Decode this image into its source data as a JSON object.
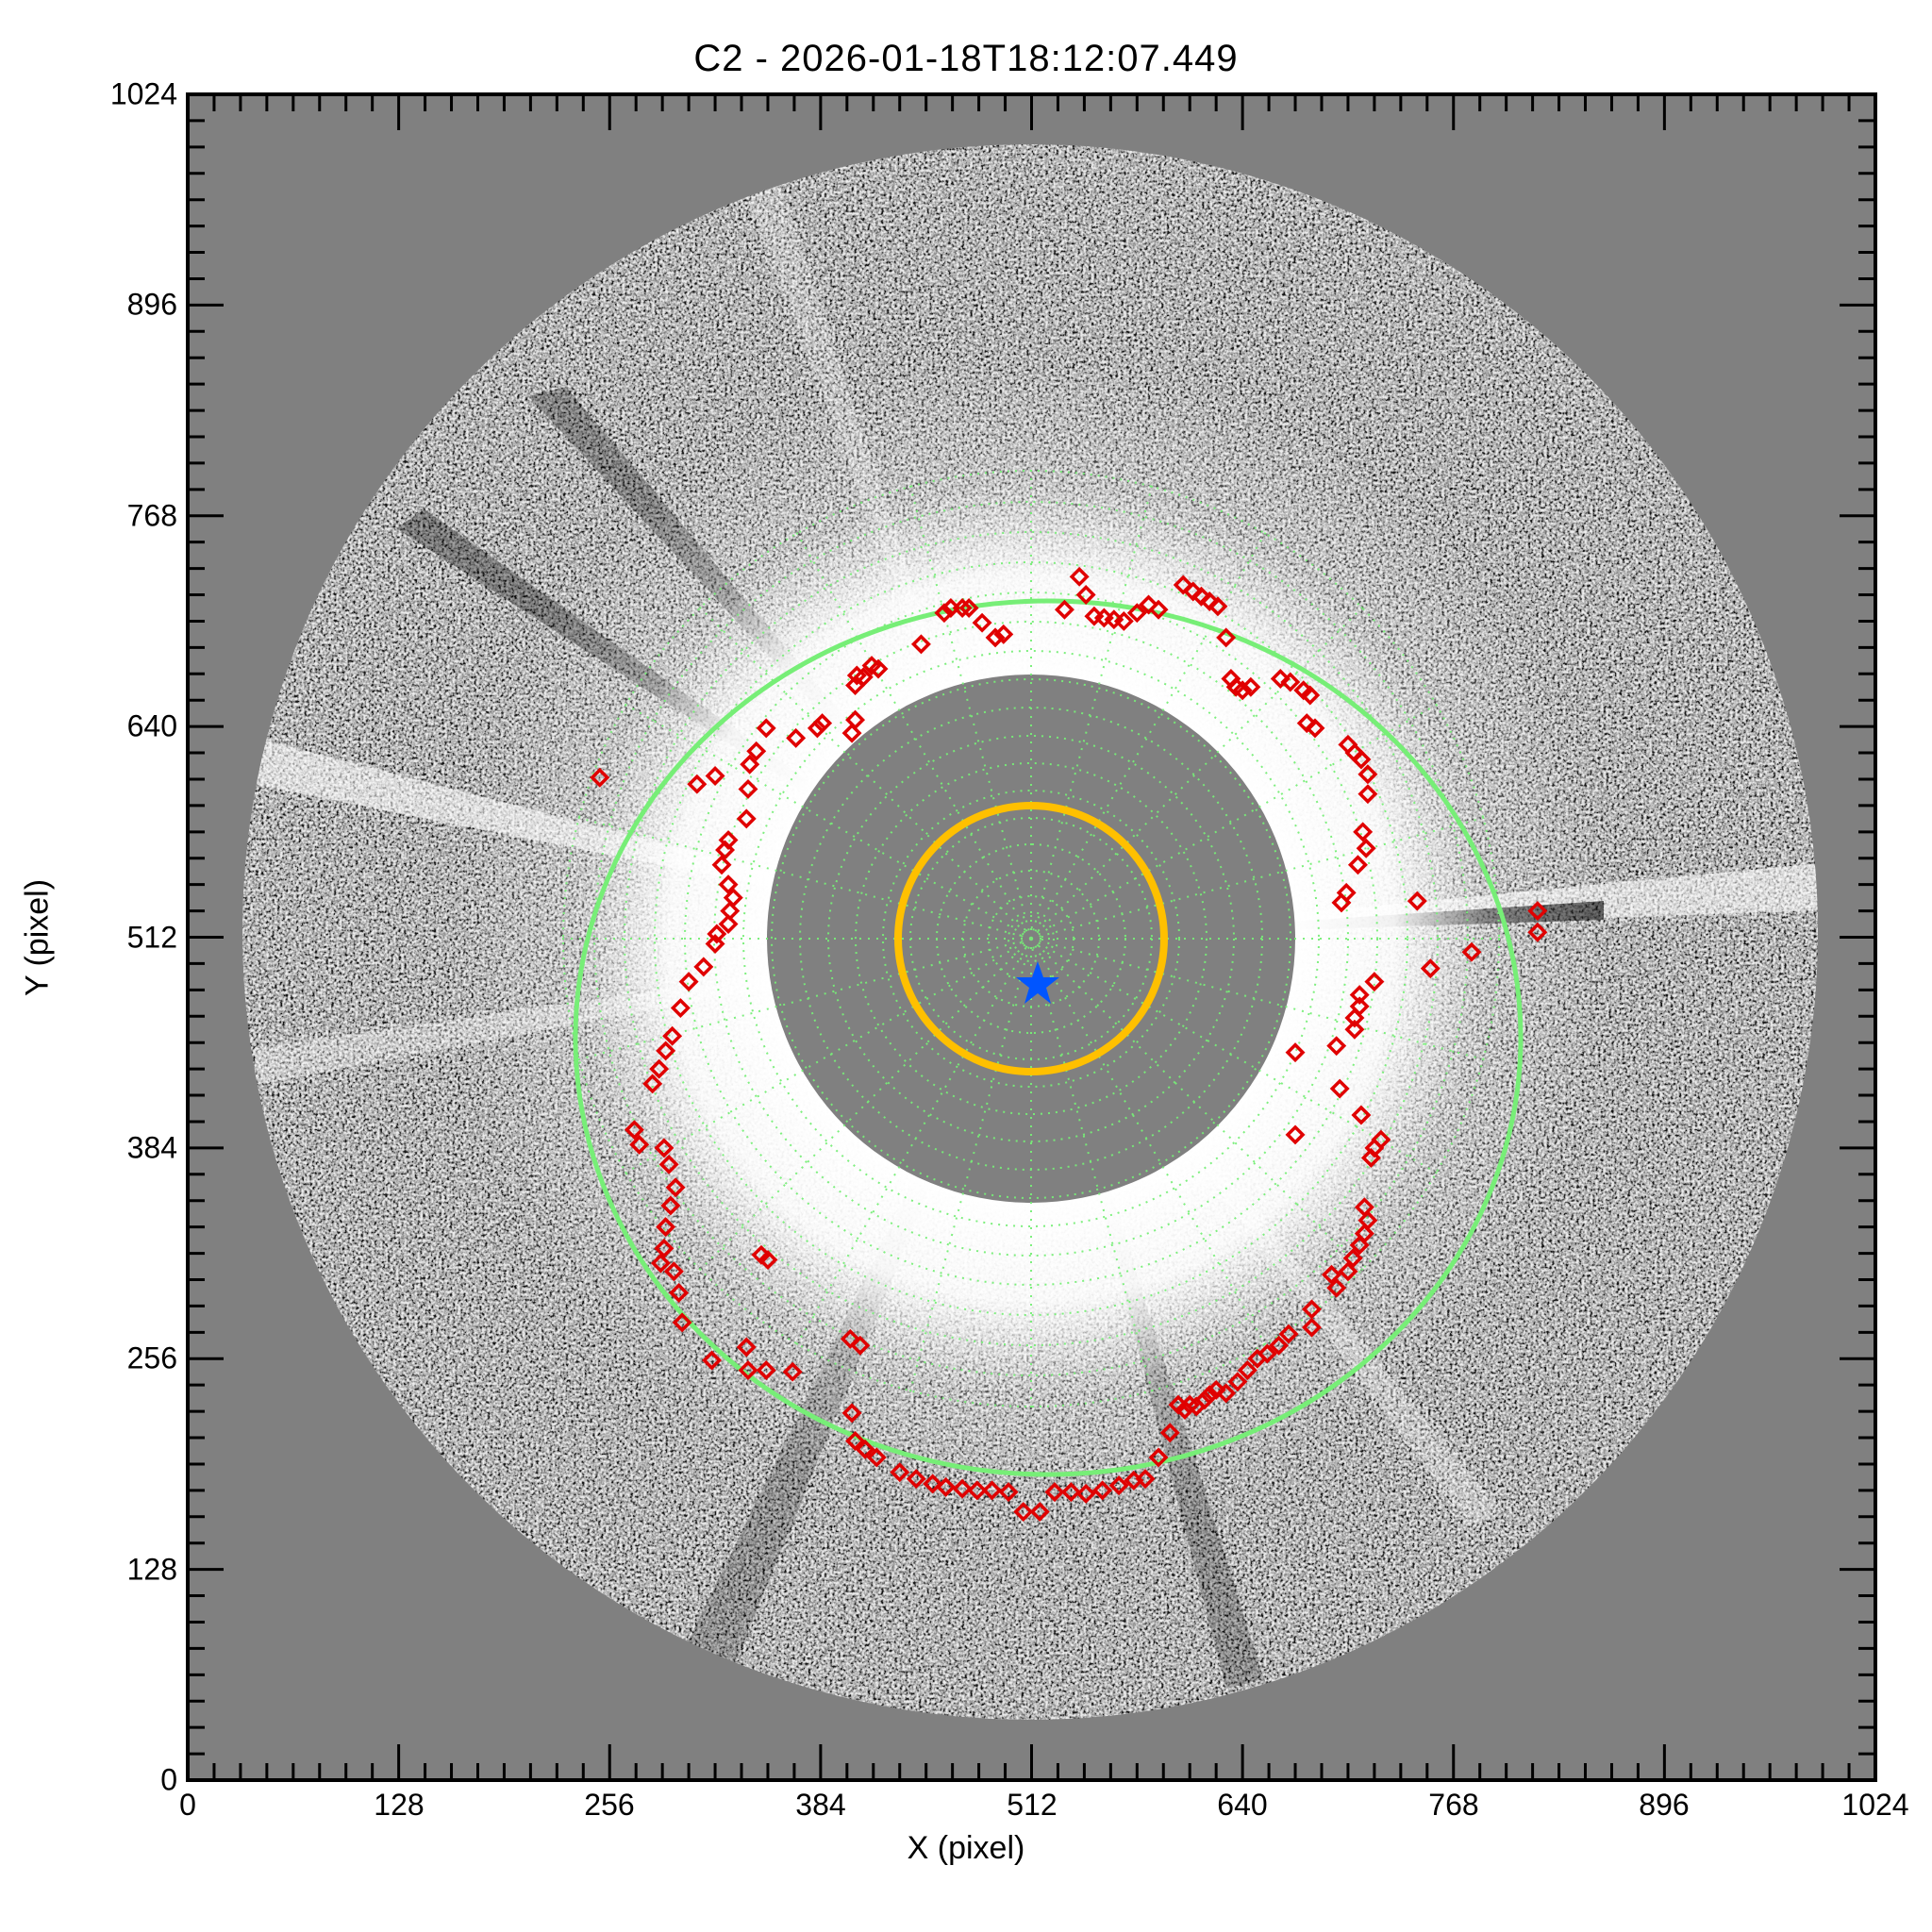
{
  "title": "C2 - 2026-01-18T18:12:07.449",
  "xlabel": "X (pixel)",
  "ylabel": "Y (pixel)",
  "xticks": [
    "0",
    "128",
    "256",
    "384",
    "512",
    "640",
    "768",
    "896",
    "1024"
  ],
  "yticks": [
    "0",
    "128",
    "256",
    "384",
    "512",
    "640",
    "768",
    "896",
    "1024"
  ],
  "colors": {
    "background": "#808080",
    "marker": "#e00000",
    "fit_circle": "#77ee77",
    "grid": "#77ee77",
    "solar_disk": "#ffc000",
    "center_star": "#0055ff"
  },
  "chart_data": {
    "type": "scatter",
    "title": "C2 - 2026-01-18T18:12:07.449",
    "xlabel": "X (pixel)",
    "ylabel": "Y (pixel)",
    "xlim": [
      0,
      1024
    ],
    "ylim": [
      0,
      1024
    ],
    "xticks": [
      0,
      128,
      256,
      384,
      512,
      640,
      768,
      896,
      1024
    ],
    "yticks": [
      0,
      128,
      256,
      384,
      512,
      640,
      768,
      896,
      1024
    ],
    "grid": "polar dotted grid centered on sun",
    "background_image": "LASCO C2 running-difference coronagraph image (grayscale), occulter disk radius ~160 px",
    "annotations": [
      {
        "type": "circle",
        "name": "solar disk",
        "color": "#ffc000",
        "center": [
          512,
          512
        ],
        "radius": 81
      },
      {
        "type": "circle",
        "name": "fitted CME front",
        "color": "#77ee77",
        "center": [
          522,
          452
        ],
        "radius": 280
      },
      {
        "type": "star",
        "name": "fit center",
        "color": "#0055ff",
        "position": [
          516,
          484
        ]
      }
    ],
    "series": [
      {
        "name": "CME front points",
        "marker": "diamond",
        "color": "#e00000",
        "points": [
          [
            541,
            731
          ],
          [
            545,
            720
          ],
          [
            532,
            711
          ],
          [
            550,
            707
          ],
          [
            556,
            706
          ],
          [
            562,
            705
          ],
          [
            568,
            704
          ],
          [
            576,
            709
          ],
          [
            583,
            714
          ],
          [
            589,
            711
          ],
          [
            604,
            726
          ],
          [
            610,
            722
          ],
          [
            615,
            719
          ],
          [
            620,
            716
          ],
          [
            625,
            713
          ],
          [
            630,
            694
          ],
          [
            633,
            669
          ],
          [
            636,
            664
          ],
          [
            640,
            662
          ],
          [
            645,
            664
          ],
          [
            663,
            669
          ],
          [
            669,
            667
          ],
          [
            677,
            662
          ],
          [
            681,
            659
          ],
          [
            679,
            642
          ],
          [
            684,
            639
          ],
          [
            704,
            629
          ],
          [
            708,
            624
          ],
          [
            712,
            620
          ],
          [
            716,
            611
          ],
          [
            716,
            599
          ],
          [
            713,
            576
          ],
          [
            715,
            566
          ],
          [
            710,
            556
          ],
          [
            703,
            539
          ],
          [
            700,
            533
          ],
          [
            746,
            534
          ],
          [
            819,
            528
          ],
          [
            819,
            515
          ],
          [
            779,
            503
          ],
          [
            754,
            493
          ],
          [
            720,
            485
          ],
          [
            711,
            477
          ],
          [
            711,
            470
          ],
          [
            708,
            463
          ],
          [
            708,
            456
          ],
          [
            672,
            442
          ],
          [
            697,
            446
          ],
          [
            699,
            420
          ],
          [
            672,
            392
          ],
          [
            712,
            404
          ],
          [
            724,
            389
          ],
          [
            720,
            384
          ],
          [
            718,
            378
          ],
          [
            714,
            348
          ],
          [
            716,
            340
          ],
          [
            714,
            332
          ],
          [
            711,
            325
          ],
          [
            707,
            317
          ],
          [
            704,
            309
          ],
          [
            694,
            307
          ],
          [
            697,
            299
          ],
          [
            682,
            286
          ],
          [
            682,
            275
          ],
          [
            668,
            271
          ],
          [
            662,
            264
          ],
          [
            655,
            259
          ],
          [
            649,
            256
          ],
          [
            643,
            249
          ],
          [
            637,
            242
          ],
          [
            630,
            235
          ],
          [
            617,
            231
          ],
          [
            608,
            228
          ],
          [
            601,
            228
          ],
          [
            620,
            234
          ],
          [
            624,
            237
          ],
          [
            612,
            227
          ],
          [
            605,
            225
          ],
          [
            596,
            211
          ],
          [
            589,
            196
          ],
          [
            581,
            183
          ],
          [
            574,
            182
          ],
          [
            565,
            179
          ],
          [
            555,
            176
          ],
          [
            545,
            174
          ],
          [
            536,
            175
          ],
          [
            526,
            175
          ],
          [
            517,
            163
          ],
          [
            507,
            163
          ],
          [
            498,
            175
          ],
          [
            488,
            176
          ],
          [
            479,
            176
          ],
          [
            470,
            177
          ],
          [
            460,
            178
          ],
          [
            452,
            180
          ],
          [
            442,
            183
          ],
          [
            432,
            187
          ],
          [
            418,
            196
          ],
          [
            411,
            201
          ],
          [
            405,
            206
          ],
          [
            403,
            223
          ],
          [
            408,
            264
          ],
          [
            402,
            268
          ],
          [
            367,
            248
          ],
          [
            351,
            249
          ],
          [
            340,
            249
          ],
          [
            339,
            263
          ],
          [
            352,
            316
          ],
          [
            348,
            319
          ],
          [
            318,
            255
          ],
          [
            300,
            278
          ],
          [
            298,
            296
          ],
          [
            295,
            309
          ],
          [
            287,
            314
          ],
          [
            289,
            323
          ],
          [
            290,
            336
          ],
          [
            293,
            349
          ],
          [
            296,
            360
          ],
          [
            292,
            374
          ],
          [
            289,
            384
          ],
          [
            271,
            395
          ],
          [
            274,
            386
          ],
          [
            282,
            423
          ],
          [
            286,
            432
          ],
          [
            290,
            443
          ],
          [
            294,
            452
          ],
          [
            299,
            469
          ],
          [
            304,
            485
          ],
          [
            313,
            494
          ],
          [
            320,
            508
          ],
          [
            321,
            514
          ],
          [
            328,
            520
          ],
          [
            329,
            528
          ],
          [
            331,
            536
          ],
          [
            328,
            544
          ],
          [
            324,
            556
          ],
          [
            326,
            565
          ],
          [
            328,
            571
          ],
          [
            339,
            584
          ],
          [
            340,
            602
          ],
          [
            341,
            617
          ],
          [
            345,
            625
          ],
          [
            351,
            639
          ],
          [
            250,
            609
          ],
          [
            309,
            605
          ],
          [
            320,
            610
          ],
          [
            369,
            633
          ],
          [
            382,
            639
          ],
          [
            385,
            642
          ],
          [
            403,
            636
          ],
          [
            405,
            644
          ],
          [
            406,
            671
          ],
          [
            410,
            670
          ],
          [
            405,
            665
          ],
          [
            419,
            675
          ],
          [
            415,
            677
          ],
          [
            445,
            690
          ],
          [
            459,
            709
          ],
          [
            463,
            712
          ],
          [
            470,
            712
          ],
          [
            474,
            712
          ],
          [
            482,
            703
          ],
          [
            490,
            694
          ],
          [
            495,
            696
          ]
        ]
      }
    ]
  }
}
